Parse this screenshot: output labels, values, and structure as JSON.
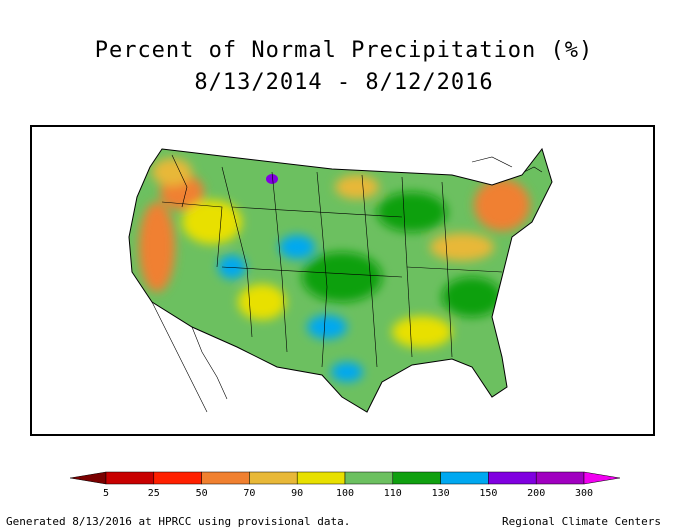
{
  "title": "Percent of Normal Precipitation (%)",
  "subtitle": "8/13/2014 - 8/12/2016",
  "legend": {
    "ticks": [
      "5",
      "25",
      "50",
      "70",
      "90",
      "100",
      "110",
      "130",
      "150",
      "200",
      "300"
    ],
    "colors": [
      "#7a0000",
      "#c80000",
      "#ff2000",
      "#f08030",
      "#e8b838",
      "#e8e000",
      "#6cc060",
      "#10a010",
      "#00a8f0",
      "#8000e0",
      "#a000c0",
      "#f000f0"
    ]
  },
  "footer": {
    "left": "Generated 8/13/2016 at HPRCC using provisional data.",
    "right": "Regional Climate Centers"
  }
}
